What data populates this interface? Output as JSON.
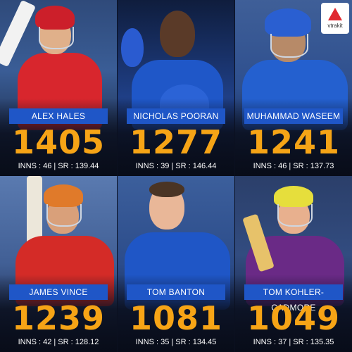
{
  "brand": {
    "logo_text": "vtrakit"
  },
  "players": [
    {
      "name": "ALEX HALES",
      "runs": "1405",
      "stats": "INNS : 46 | SR : 139.44"
    },
    {
      "name": "NICHOLAS POORAN",
      "runs": "1277",
      "stats": "INNS : 39 | SR : 146.44"
    },
    {
      "name": "MUHAMMAD WASEEM",
      "runs": "1241",
      "stats": "INNS : 46 | SR : 137.73"
    },
    {
      "name": "JAMES VINCE",
      "runs": "1239",
      "stats": "INNS : 42 | SR : 128.12"
    },
    {
      "name": "TOM BANTON",
      "runs": "1081",
      "stats": "INNS : 35 | SR : 134.45"
    },
    {
      "name": "TOM KOHLER-CADMORE",
      "runs": "1049",
      "stats": "INNS : 37 | SR : 135.35"
    }
  ],
  "colors": {
    "accent": "#f6a416",
    "name_bar": "#1f56c7",
    "logo_red": "#e0282f"
  }
}
